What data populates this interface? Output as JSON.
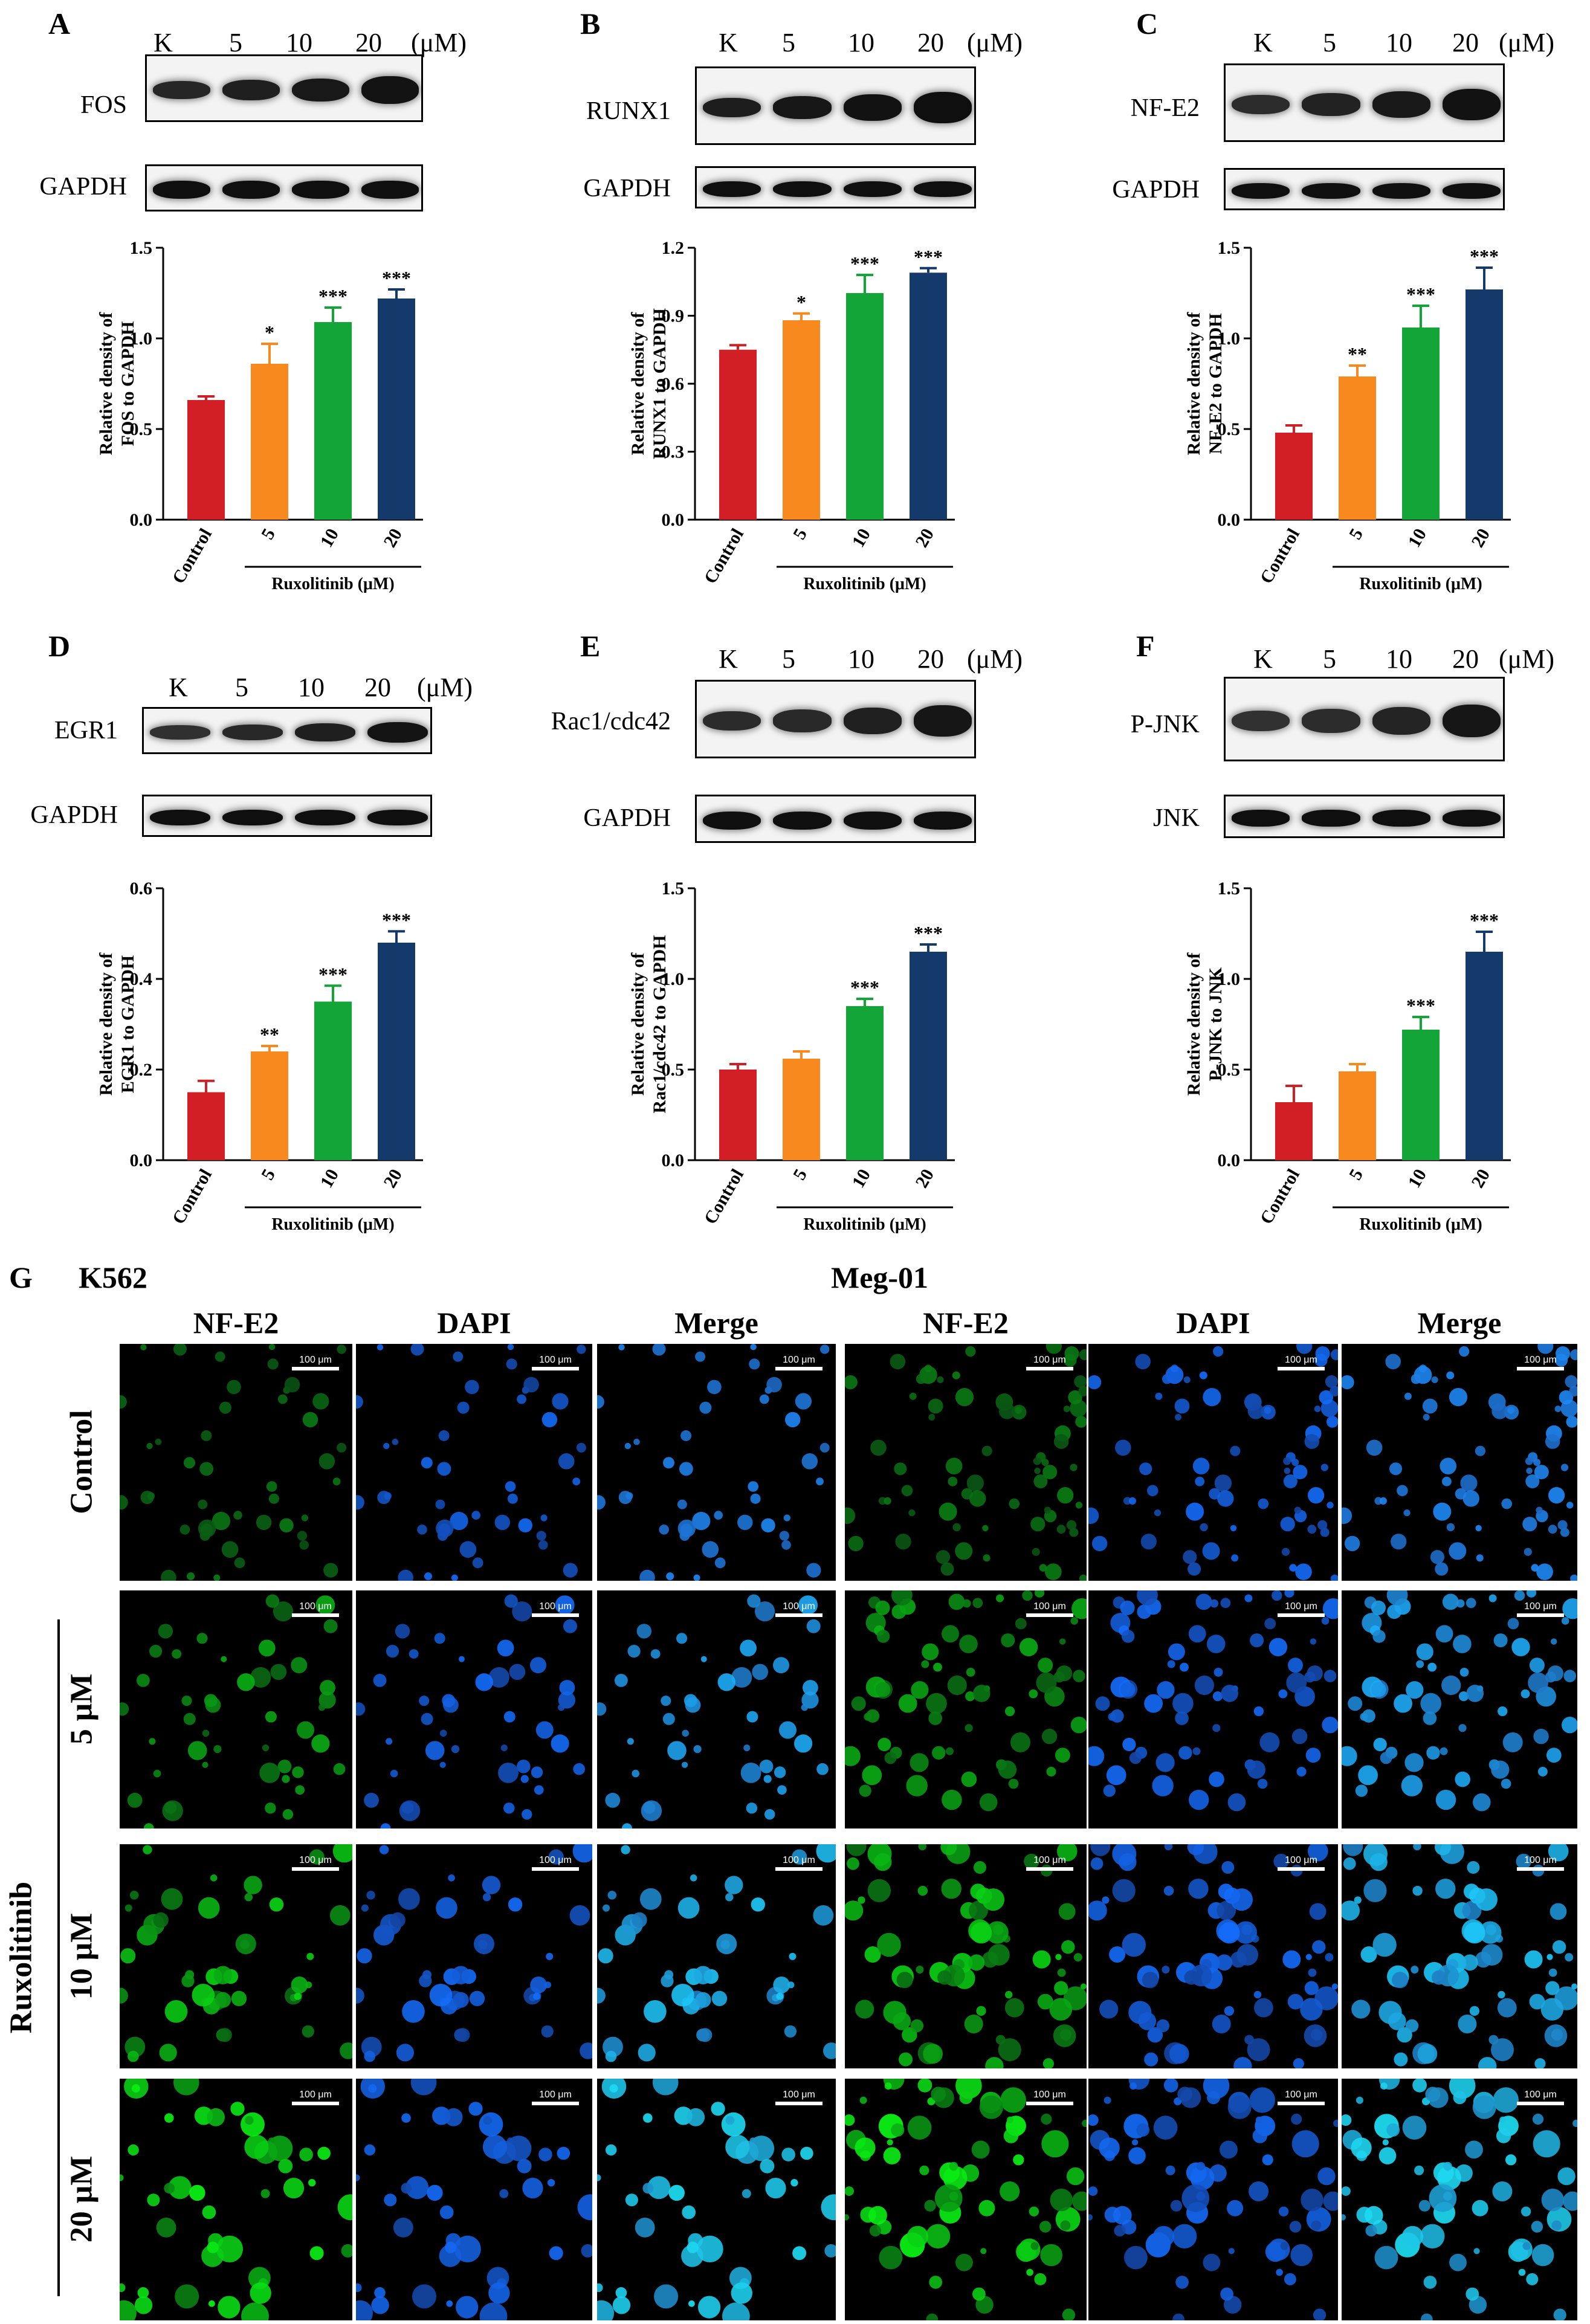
{
  "lanes": [
    "K",
    "5",
    "10",
    "20"
  ],
  "unit": "(μM)",
  "chart_data": [
    {
      "panel": "A",
      "type": "bar",
      "blot_names": [
        "FOS",
        "GAPDH"
      ],
      "categories": [
        "Control",
        "5",
        "10",
        "20"
      ],
      "values": [
        0.66,
        0.86,
        1.09,
        1.22
      ],
      "errors": [
        0.02,
        0.11,
        0.08,
        0.05
      ],
      "significance": [
        "",
        "*",
        "***",
        "***"
      ],
      "ylabel_line1": "Relative density of",
      "ylabel_line2": "FOS to GAPDH",
      "xgroup_label": "Ruxolitinib (μM)",
      "ylim": [
        0,
        1.5
      ],
      "yticks": [
        "0.0",
        "0.5",
        "1.0",
        "1.5"
      ],
      "colors": [
        "#d11f25",
        "#f7891e",
        "#13a538",
        "#143a6b"
      ]
    },
    {
      "panel": "B",
      "type": "bar",
      "blot_names": [
        "RUNX1",
        "GAPDH"
      ],
      "categories": [
        "Control",
        "5",
        "10",
        "20"
      ],
      "values": [
        0.75,
        0.88,
        1.0,
        1.09
      ],
      "errors": [
        0.02,
        0.03,
        0.08,
        0.02
      ],
      "significance": [
        "",
        "*",
        "***",
        "***"
      ],
      "ylabel_line1": "Relative density of",
      "ylabel_line2": "RUNX1 to GAPDH",
      "xgroup_label": "Ruxolitinib (μM)",
      "ylim": [
        0,
        1.2
      ],
      "yticks": [
        "0.0",
        "0.3",
        "0.6",
        "0.9",
        "1.2"
      ],
      "colors": [
        "#d11f25",
        "#f7891e",
        "#13a538",
        "#143a6b"
      ]
    },
    {
      "panel": "C",
      "type": "bar",
      "blot_names": [
        "NF-E2",
        "GAPDH"
      ],
      "categories": [
        "Control",
        "5",
        "10",
        "20"
      ],
      "values": [
        0.48,
        0.79,
        1.06,
        1.27
      ],
      "errors": [
        0.04,
        0.06,
        0.12,
        0.12
      ],
      "significance": [
        "",
        "**",
        "***",
        "***"
      ],
      "ylabel_line1": "Relative density of",
      "ylabel_line2": "NF-E2 to GAPDH",
      "xgroup_label": "Ruxolitinib (μM)",
      "ylim": [
        0,
        1.5
      ],
      "yticks": [
        "0.0",
        "0.5",
        "1.0",
        "1.5"
      ],
      "colors": [
        "#d11f25",
        "#f7891e",
        "#13a538",
        "#143a6b"
      ]
    },
    {
      "panel": "D",
      "type": "bar",
      "blot_names": [
        "EGR1",
        "GAPDH"
      ],
      "categories": [
        "Control",
        "5",
        "10",
        "20"
      ],
      "values": [
        0.15,
        0.24,
        0.35,
        0.48
      ],
      "errors": [
        0.025,
        0.012,
        0.035,
        0.025
      ],
      "significance": [
        "",
        "**",
        "***",
        "***"
      ],
      "ylabel_line1": "Relative density of",
      "ylabel_line2": "EGR1 to GAPDH",
      "xgroup_label": "Ruxolitinib (μM)",
      "ylim": [
        0,
        0.6
      ],
      "yticks": [
        "0.0",
        "0.2",
        "0.4",
        "0.6"
      ],
      "colors": [
        "#d11f25",
        "#f7891e",
        "#13a538",
        "#143a6b"
      ]
    },
    {
      "panel": "E",
      "type": "bar",
      "blot_names": [
        "Rac1/cdc42",
        "GAPDH"
      ],
      "categories": [
        "Control",
        "5",
        "10",
        "20"
      ],
      "values": [
        0.5,
        0.56,
        0.85,
        1.15
      ],
      "errors": [
        0.03,
        0.04,
        0.04,
        0.04
      ],
      "significance": [
        "",
        "",
        "***",
        "***"
      ],
      "ylabel_line1": "Relative density of",
      "ylabel_line2": "Rac1/cdc42 to GAPDH",
      "xgroup_label": "Ruxolitinib (μM)",
      "ylim": [
        0,
        1.5
      ],
      "yticks": [
        "0.0",
        "0.5",
        "1.0",
        "1.5"
      ],
      "colors": [
        "#d11f25",
        "#f7891e",
        "#13a538",
        "#143a6b"
      ]
    },
    {
      "panel": "F",
      "type": "bar",
      "blot_names": [
        "P-JNK",
        "JNK"
      ],
      "categories": [
        "Control",
        "5",
        "10",
        "20"
      ],
      "values": [
        0.32,
        0.49,
        0.72,
        1.15
      ],
      "errors": [
        0.09,
        0.04,
        0.07,
        0.11
      ],
      "significance": [
        "",
        "",
        "***",
        "***"
      ],
      "ylabel_line1": "Relative density of",
      "ylabel_line2": "P-JNK to JNK",
      "xgroup_label": "Ruxolitinib (μM)",
      "ylim": [
        0,
        1.5
      ],
      "yticks": [
        "0.0",
        "0.5",
        "1.0",
        "1.5"
      ],
      "colors": [
        "#d11f25",
        "#f7891e",
        "#13a538",
        "#143a6b"
      ]
    }
  ],
  "panel_g": {
    "label": "G",
    "cell_lines": [
      "K562",
      "Meg-01"
    ],
    "columns": [
      "NF-E2",
      "DAPI",
      "Merge",
      "NF-E2",
      "DAPI",
      "Merge"
    ],
    "rows": [
      "Control",
      "5 μM",
      "10 μM",
      "20 μM"
    ],
    "treatment_label": "Ruxolitinib",
    "scale_bar": "100 μm",
    "row_intensity": [
      0.35,
      0.6,
      0.8,
      1.0
    ]
  }
}
